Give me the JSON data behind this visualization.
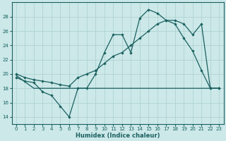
{
  "xlabel": "Humidex (Indice chaleur)",
  "xlim": [
    -0.5,
    23.5
  ],
  "ylim": [
    13.0,
    30.0
  ],
  "yticks": [
    14,
    16,
    18,
    20,
    22,
    24,
    26,
    28
  ],
  "xticks": [
    0,
    1,
    2,
    3,
    4,
    5,
    6,
    7,
    8,
    9,
    10,
    11,
    12,
    13,
    14,
    15,
    16,
    17,
    18,
    19,
    20,
    21,
    22,
    23
  ],
  "bg_color": "#cce8e8",
  "grid_color": "#aacfcf",
  "line_color": "#1a6060",
  "line1_x": [
    0,
    1,
    2,
    3,
    4,
    5,
    6,
    7,
    8,
    9,
    10,
    11,
    12,
    13,
    14,
    15,
    16,
    17,
    18,
    19,
    20,
    21,
    22,
    23
  ],
  "line1_y": [
    19.5,
    19.0,
    18.8,
    17.5,
    17.0,
    15.5,
    14.0,
    18.0,
    18.0,
    20.0,
    23.0,
    25.5,
    25.5,
    23.0,
    27.8,
    29.0,
    28.5,
    27.5,
    27.0,
    25.0,
    23.2,
    20.5,
    18.0,
    18.0
  ],
  "line2_x": [
    0,
    1,
    2,
    3,
    4,
    5,
    6,
    7,
    8,
    9,
    10,
    11,
    12,
    13,
    14,
    15,
    16,
    17,
    18,
    19,
    20,
    21,
    22,
    23
  ],
  "line2_y": [
    20.0,
    19.5,
    19.2,
    19.0,
    18.8,
    18.5,
    18.3,
    19.5,
    20.0,
    20.5,
    21.5,
    22.5,
    23.0,
    24.0,
    25.0,
    26.0,
    27.0,
    27.5,
    27.5,
    27.0,
    25.5,
    27.0,
    18.0,
    18.0
  ],
  "line3_x": [
    0,
    2,
    23
  ],
  "line3_y": [
    19.8,
    18.0,
    18.0
  ]
}
